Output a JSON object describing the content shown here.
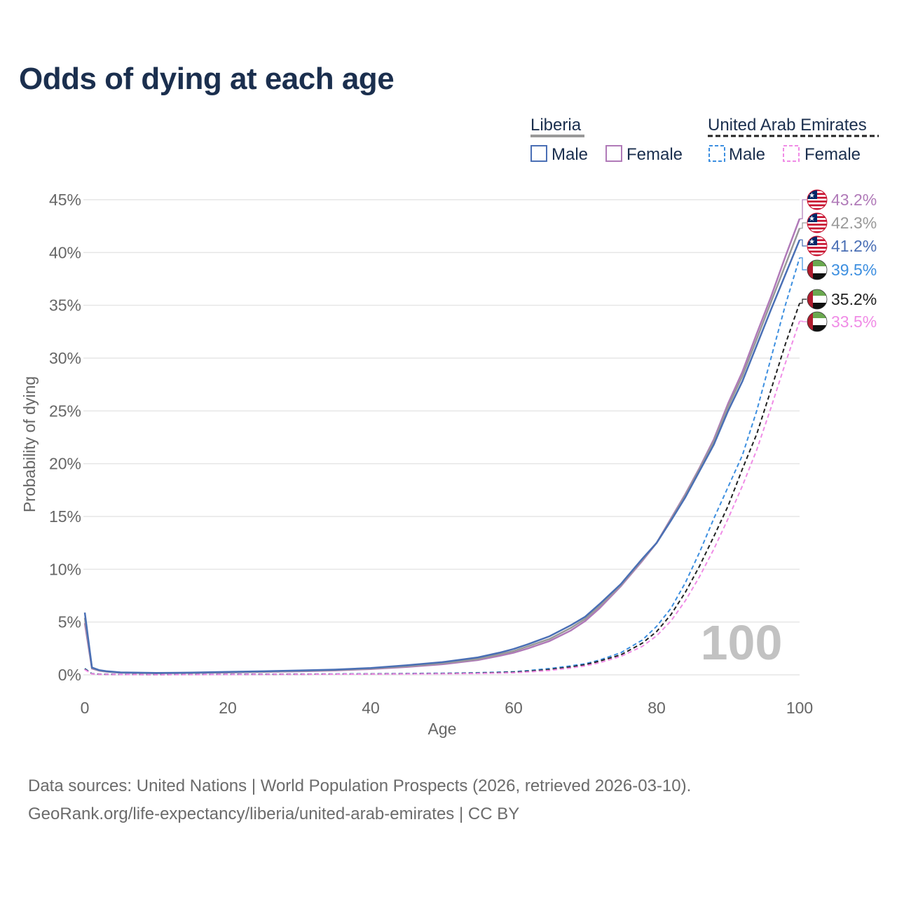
{
  "title": "Odds of dying at each age",
  "legend": {
    "groups": [
      {
        "country": "Liberia",
        "male_label": "Male",
        "female_label": "Female"
      },
      {
        "country": "United Arab Emirates",
        "male_label": "Male",
        "female_label": "Female"
      }
    ]
  },
  "watermark_age": "100",
  "footer": {
    "line1": "Data sources: United Nations | World Population Prospects (2026, retrieved 2026-03-10).",
    "line2": "GeoRank.org/life-expectancy/liberia/united-arab-emirates | CC BY"
  },
  "colors": {
    "liberia_male": "#4a6fb5",
    "liberia_female": "#b07ab8",
    "liberia_total": "#999999",
    "uae_male": "#3d8fe0",
    "uae_female": "#f08ce6",
    "uae_total": "#222222",
    "title": "#1b2f4e",
    "grid": "#e6e6e6",
    "axis_text": "#666666"
  },
  "chart_data": {
    "type": "line",
    "title": "Odds of dying at each age",
    "xlabel": "Age",
    "ylabel": "Probability of dying",
    "xlim": [
      0,
      100
    ],
    "ylim": [
      0,
      45
    ],
    "x_ticks": [
      0,
      20,
      40,
      60,
      80,
      100
    ],
    "y_ticks": [
      0,
      5,
      10,
      15,
      20,
      25,
      30,
      35,
      40,
      45
    ],
    "y_tick_labels": [
      "0%",
      "5%",
      "10%",
      "15%",
      "20%",
      "25%",
      "30%",
      "35%",
      "40%",
      "45%"
    ],
    "grid": true,
    "legend_position": "top-right",
    "series": [
      {
        "id": "liberia_female",
        "name": "Liberia Female",
        "dashed": false,
        "end_label": "43.2%",
        "flag": "liberia",
        "points": [
          [
            0,
            4.9
          ],
          [
            1,
            0.6
          ],
          [
            2,
            0.4
          ],
          [
            3,
            0.3
          ],
          [
            5,
            0.2
          ],
          [
            10,
            0.15
          ],
          [
            15,
            0.17
          ],
          [
            20,
            0.22
          ],
          [
            25,
            0.27
          ],
          [
            30,
            0.33
          ],
          [
            35,
            0.42
          ],
          [
            40,
            0.55
          ],
          [
            45,
            0.75
          ],
          [
            50,
            1.0
          ],
          [
            55,
            1.4
          ],
          [
            58,
            1.8
          ],
          [
            60,
            2.1
          ],
          [
            62,
            2.5
          ],
          [
            65,
            3.2
          ],
          [
            68,
            4.2
          ],
          [
            70,
            5.1
          ],
          [
            72,
            6.3
          ],
          [
            75,
            8.4
          ],
          [
            78,
            10.8
          ],
          [
            80,
            12.5
          ],
          [
            82,
            14.8
          ],
          [
            84,
            17.1
          ],
          [
            86,
            19.6
          ],
          [
            88,
            22.3
          ],
          [
            90,
            25.7
          ],
          [
            92,
            28.7
          ],
          [
            94,
            32.3
          ],
          [
            96,
            35.8
          ],
          [
            98,
            39.6
          ],
          [
            100,
            43.2
          ]
        ]
      },
      {
        "id": "liberia_total",
        "name": "Liberia",
        "dashed": false,
        "end_label": "42.3%",
        "flag": "liberia",
        "points": [
          [
            0,
            5.4
          ],
          [
            1,
            0.65
          ],
          [
            2,
            0.42
          ],
          [
            3,
            0.32
          ],
          [
            5,
            0.21
          ],
          [
            10,
            0.16
          ],
          [
            15,
            0.19
          ],
          [
            20,
            0.25
          ],
          [
            25,
            0.3
          ],
          [
            30,
            0.37
          ],
          [
            35,
            0.46
          ],
          [
            40,
            0.6
          ],
          [
            45,
            0.82
          ],
          [
            50,
            1.1
          ],
          [
            55,
            1.5
          ],
          [
            58,
            1.95
          ],
          [
            60,
            2.25
          ],
          [
            62,
            2.7
          ],
          [
            65,
            3.4
          ],
          [
            68,
            4.45
          ],
          [
            70,
            5.3
          ],
          [
            72,
            6.5
          ],
          [
            75,
            8.5
          ],
          [
            78,
            10.9
          ],
          [
            80,
            12.5
          ],
          [
            82,
            14.7
          ],
          [
            84,
            17.0
          ],
          [
            86,
            19.5
          ],
          [
            88,
            22.1
          ],
          [
            90,
            25.4
          ],
          [
            92,
            28.3
          ],
          [
            94,
            31.8
          ],
          [
            96,
            35.3
          ],
          [
            98,
            38.8
          ],
          [
            100,
            42.3
          ]
        ]
      },
      {
        "id": "liberia_male",
        "name": "Liberia Male",
        "dashed": false,
        "end_label": "41.2%",
        "flag": "liberia",
        "points": [
          [
            0,
            5.9
          ],
          [
            1,
            0.7
          ],
          [
            2,
            0.45
          ],
          [
            3,
            0.35
          ],
          [
            5,
            0.23
          ],
          [
            10,
            0.18
          ],
          [
            15,
            0.21
          ],
          [
            20,
            0.28
          ],
          [
            25,
            0.34
          ],
          [
            30,
            0.41
          ],
          [
            35,
            0.5
          ],
          [
            40,
            0.65
          ],
          [
            45,
            0.9
          ],
          [
            50,
            1.2
          ],
          [
            55,
            1.65
          ],
          [
            58,
            2.1
          ],
          [
            60,
            2.45
          ],
          [
            62,
            2.9
          ],
          [
            65,
            3.65
          ],
          [
            68,
            4.7
          ],
          [
            70,
            5.5
          ],
          [
            72,
            6.7
          ],
          [
            75,
            8.6
          ],
          [
            78,
            11.0
          ],
          [
            80,
            12.5
          ],
          [
            82,
            14.6
          ],
          [
            84,
            16.8
          ],
          [
            86,
            19.3
          ],
          [
            88,
            21.8
          ],
          [
            90,
            25.0
          ],
          [
            92,
            27.8
          ],
          [
            94,
            31.2
          ],
          [
            96,
            34.6
          ],
          [
            98,
            37.9
          ],
          [
            100,
            41.2
          ]
        ]
      },
      {
        "id": "uae_male",
        "name": "United Arab Emirates Male",
        "dashed": true,
        "end_label": "39.5%",
        "flag": "uae",
        "points": [
          [
            0,
            0.6
          ],
          [
            1,
            0.12
          ],
          [
            2,
            0.07
          ],
          [
            5,
            0.04
          ],
          [
            10,
            0.03
          ],
          [
            20,
            0.05
          ],
          [
            30,
            0.07
          ],
          [
            40,
            0.1
          ],
          [
            50,
            0.15
          ],
          [
            55,
            0.2
          ],
          [
            60,
            0.3
          ],
          [
            62,
            0.4
          ],
          [
            65,
            0.6
          ],
          [
            68,
            0.85
          ],
          [
            70,
            1.05
          ],
          [
            72,
            1.4
          ],
          [
            75,
            2.1
          ],
          [
            78,
            3.3
          ],
          [
            80,
            4.6
          ],
          [
            82,
            6.3
          ],
          [
            84,
            8.7
          ],
          [
            86,
            11.6
          ],
          [
            88,
            14.8
          ],
          [
            90,
            17.8
          ],
          [
            92,
            20.8
          ],
          [
            94,
            25.0
          ],
          [
            96,
            30.0
          ],
          [
            98,
            35.0
          ],
          [
            100,
            39.5
          ]
        ]
      },
      {
        "id": "uae_total",
        "name": "United Arab Emirates",
        "dashed": true,
        "end_label": "35.2%",
        "flag": "uae",
        "points": [
          [
            0,
            0.55
          ],
          [
            1,
            0.1
          ],
          [
            2,
            0.06
          ],
          [
            5,
            0.035
          ],
          [
            10,
            0.025
          ],
          [
            20,
            0.04
          ],
          [
            30,
            0.06
          ],
          [
            40,
            0.08
          ],
          [
            50,
            0.12
          ],
          [
            55,
            0.16
          ],
          [
            60,
            0.25
          ],
          [
            62,
            0.33
          ],
          [
            65,
            0.5
          ],
          [
            68,
            0.75
          ],
          [
            70,
            0.95
          ],
          [
            72,
            1.3
          ],
          [
            75,
            1.9
          ],
          [
            78,
            3.0
          ],
          [
            80,
            4.1
          ],
          [
            82,
            5.7
          ],
          [
            84,
            7.8
          ],
          [
            86,
            10.3
          ],
          [
            88,
            13.1
          ],
          [
            90,
            16.0
          ],
          [
            92,
            19.5
          ],
          [
            94,
            22.8
          ],
          [
            96,
            27.0
          ],
          [
            98,
            31.3
          ],
          [
            100,
            35.2
          ]
        ]
      },
      {
        "id": "uae_female",
        "name": "United Arab Emirates Female",
        "dashed": true,
        "end_label": "33.5%",
        "flag": "uae",
        "points": [
          [
            0,
            0.5
          ],
          [
            1,
            0.09
          ],
          [
            2,
            0.05
          ],
          [
            5,
            0.03
          ],
          [
            10,
            0.02
          ],
          [
            20,
            0.03
          ],
          [
            30,
            0.05
          ],
          [
            40,
            0.07
          ],
          [
            50,
            0.1
          ],
          [
            55,
            0.13
          ],
          [
            60,
            0.2
          ],
          [
            62,
            0.27
          ],
          [
            65,
            0.42
          ],
          [
            68,
            0.65
          ],
          [
            70,
            0.85
          ],
          [
            72,
            1.15
          ],
          [
            75,
            1.75
          ],
          [
            78,
            2.7
          ],
          [
            80,
            3.7
          ],
          [
            82,
            5.1
          ],
          [
            84,
            7.0
          ],
          [
            86,
            9.3
          ],
          [
            88,
            11.9
          ],
          [
            90,
            14.8
          ],
          [
            92,
            17.9
          ],
          [
            94,
            21.3
          ],
          [
            96,
            25.3
          ],
          [
            98,
            29.5
          ],
          [
            100,
            33.5
          ]
        ]
      }
    ]
  }
}
